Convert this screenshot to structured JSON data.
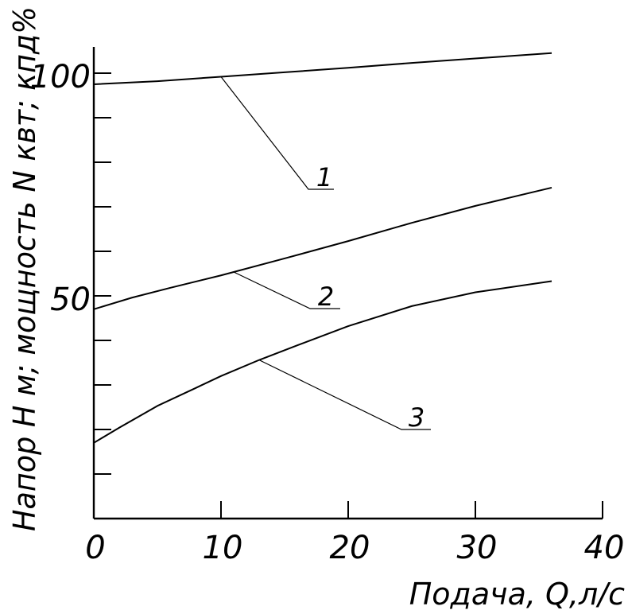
{
  "chart_data": {
    "type": "line",
    "title": "",
    "xlabel": "Подача, Q,л/с",
    "ylabel": "Напор H м; мощность N квт; кпд%",
    "xlim": [
      0,
      40
    ],
    "ylim": [
      0,
      105
    ],
    "x_ticks": [
      0,
      10,
      20,
      30,
      40
    ],
    "x_tick_labels": [
      "0",
      "10",
      "20",
      "30",
      "40"
    ],
    "y_ticks": [
      10,
      20,
      30,
      40,
      50,
      60,
      70,
      80,
      90,
      100
    ],
    "y_tick_labels": [
      "50",
      "100"
    ],
    "y_labeled_values": [
      50,
      100
    ],
    "grid": false,
    "series": [
      {
        "name": "1",
        "x": [
          0,
          5,
          10,
          15,
          20,
          25,
          30,
          36
        ],
        "values": [
          97.5,
          98.2,
          99.2,
          100.2,
          101.2,
          102.3,
          103.3,
          104.5
        ]
      },
      {
        "name": "2",
        "x": [
          0,
          3,
          6,
          10,
          15,
          20,
          25,
          30,
          36
        ],
        "values": [
          47,
          49.6,
          51.8,
          54.6,
          58.4,
          62.3,
          66.4,
          70.2,
          74.3
        ]
      },
      {
        "name": "3",
        "x": [
          0,
          2,
          5,
          8,
          10,
          13,
          16,
          20,
          25,
          30,
          36
        ],
        "values": [
          17,
          20.4,
          25.3,
          29.3,
          32.0,
          35.6,
          38.9,
          43.2,
          47.7,
          50.8,
          53.3
        ]
      }
    ],
    "annotations": [
      {
        "text": "1",
        "series": "1",
        "at_x": 10
      },
      {
        "text": "2",
        "series": "2",
        "at_x": 11
      },
      {
        "text": "3",
        "series": "3",
        "at_x": 13
      }
    ]
  }
}
